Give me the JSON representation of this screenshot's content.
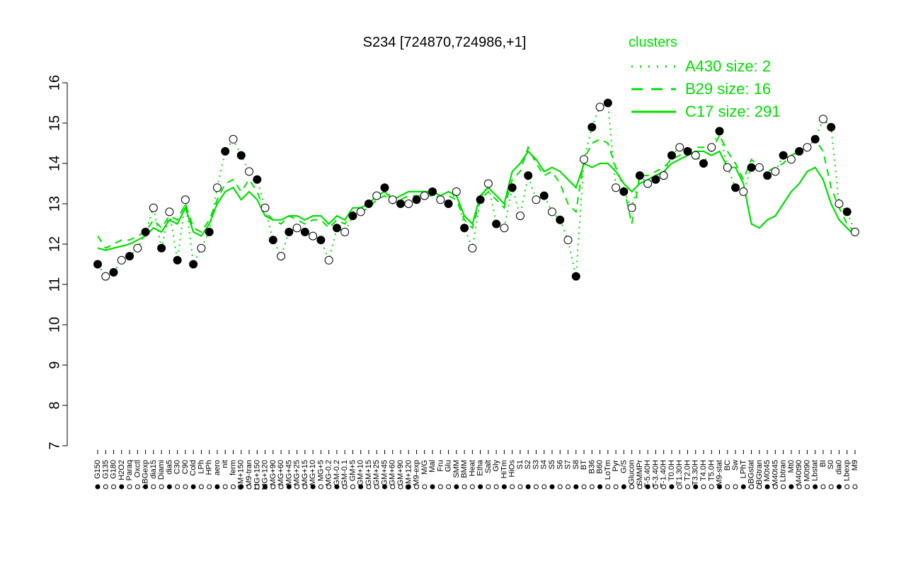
{
  "chart_data": {
    "type": "scatter",
    "title": "S234 [724870,724986,+1]",
    "xlabel": "",
    "ylabel": "",
    "ylim": [
      7,
      16
    ],
    "yticks": [
      7,
      8,
      9,
      10,
      11,
      12,
      13,
      14,
      15,
      16
    ],
    "grid": false,
    "legend_position": "top-right",
    "colors": {
      "axis": "#000000",
      "line": "#00dd00",
      "point_fill_dark": "#000000",
      "point_fill_light": "#ffffff"
    },
    "legend": {
      "title": "clusters",
      "entries": [
        {
          "label": "A430 size: 2",
          "style": "dotted"
        },
        {
          "label": "B29 size: 16",
          "style": "dashed"
        },
        {
          "label": "C17 size: 291",
          "style": "solid"
        }
      ]
    },
    "x_tick_labels": [
      "G150",
      "G135",
      "G180",
      "H2O2",
      "Paraq",
      "Oxctl",
      "LBGexp",
      "dia15",
      "Diami",
      "dia5",
      "C30",
      "C90",
      "Cold",
      "LPh",
      "HPh",
      "aero",
      "nit",
      "ferm",
      "GM+150",
      "M9-tran",
      "MG+150",
      "MG+120",
      "MG+90",
      "MG+60",
      "MG+45",
      "MG+25",
      "MG+15",
      "MG+10",
      "MG+5",
      "MG-0.2",
      "GM-0.2",
      "GM-0.1",
      "GM+5",
      "GM+10",
      "GM+15",
      "GM+25",
      "GM+45",
      "GM+60",
      "GM+90",
      "GM+120",
      "M9-exp",
      "M/G",
      "Mal",
      "Fru",
      "Glu",
      "SMM",
      "BMM",
      "Heat",
      "Etha",
      "Salt",
      "Gly",
      "HiTm",
      "HiOs",
      "S1",
      "S2",
      "S3",
      "S4",
      "S5",
      "S6",
      "S7",
      "S8",
      "BT",
      "B36",
      "B60",
      "LoTm",
      "Pyr",
      "G/S",
      "Glucon",
      "SMMPr",
      "T-5.40H",
      "T-3.40H",
      "T-1.40H",
      "T0.0H",
      "T1.30H",
      "T2.0H",
      "T3.30H",
      "T4.0H",
      "T5.0H",
      "M9-stat",
      "BC",
      "Sw",
      "LPhT",
      "LBGstat",
      "LBGtran",
      "M0t45",
      "M40t45",
      "Lbtran",
      "Mt0",
      "M40t90",
      "M0t90",
      "Lbstat",
      "BI",
      "S0",
      "dia0",
      "Lbexp",
      "M9"
    ],
    "series": [
      {
        "name": "C17 size: 291",
        "style": "solid",
        "values": [
          11.9,
          11.85,
          11.9,
          11.95,
          12.0,
          12.1,
          12.2,
          12.4,
          12.3,
          12.6,
          12.5,
          12.9,
          12.3,
          12.2,
          12.5,
          13.0,
          13.3,
          13.4,
          13.1,
          13.3,
          13.1,
          12.7,
          12.6,
          12.6,
          12.7,
          12.7,
          12.6,
          12.7,
          12.7,
          12.5,
          12.7,
          12.6,
          12.9,
          12.9,
          13.0,
          13.2,
          13.3,
          13.1,
          13.2,
          13.3,
          13.3,
          13.3,
          13.3,
          13.2,
          13.3,
          13.2,
          12.7,
          12.5,
          13.2,
          13.4,
          13.2,
          13.0,
          13.8,
          14.0,
          14.3,
          14.1,
          13.8,
          13.9,
          13.8,
          13.6,
          13.4,
          14.0,
          13.9,
          14.0,
          14.0,
          13.8,
          13.5,
          13.3,
          13.5,
          13.6,
          13.7,
          13.8,
          14.0,
          14.1,
          14.2,
          14.3,
          14.3,
          14.2,
          14.3,
          13.9,
          13.9,
          13.5,
          12.5,
          12.4,
          12.6,
          12.7,
          13.0,
          13.3,
          13.5,
          13.8,
          13.9,
          13.6,
          13.0,
          12.6,
          12.4,
          12.2
        ]
      },
      {
        "name": "B29 size: 16",
        "style": "dashed",
        "values": [
          12.2,
          11.9,
          12.0,
          12.1,
          12.1,
          12.2,
          12.3,
          12.6,
          12.4,
          12.7,
          12.6,
          13.0,
          12.4,
          12.3,
          12.6,
          13.1,
          13.5,
          13.6,
          13.3,
          13.6,
          13.3,
          12.8,
          12.6,
          12.5,
          12.7,
          12.6,
          12.5,
          12.6,
          12.6,
          12.4,
          12.6,
          12.5,
          12.8,
          12.8,
          12.9,
          13.1,
          13.2,
          13.0,
          13.1,
          13.2,
          13.2,
          13.2,
          13.2,
          13.1,
          13.2,
          13.1,
          12.6,
          12.4,
          13.1,
          13.3,
          13.1,
          12.9,
          13.6,
          13.8,
          14.4,
          14.0,
          13.7,
          13.8,
          13.5,
          13.0,
          12.8,
          14.1,
          14.5,
          14.6,
          14.5,
          13.9,
          13.4,
          12.5,
          13.7,
          13.7,
          13.8,
          13.9,
          14.1,
          14.2,
          14.3,
          14.4,
          14.4,
          14.3,
          14.7,
          14.3,
          14.0,
          13.6,
          14.1,
          13.9,
          13.8,
          13.9,
          14.0,
          14.2,
          14.3,
          14.4,
          14.6,
          14.3,
          13.4,
          12.9,
          12.5,
          12.3
        ]
      },
      {
        "name": "A430 size: 2",
        "style": "dotted",
        "values": [
          11.5,
          11.2,
          11.3,
          11.6,
          11.7,
          11.9,
          12.3,
          12.9,
          11.9,
          12.8,
          11.6,
          13.1,
          11.5,
          11.9,
          12.3,
          13.4,
          14.3,
          14.6,
          14.2,
          13.8,
          13.6,
          12.9,
          12.1,
          11.7,
          12.3,
          12.4,
          12.3,
          12.2,
          12.1,
          11.6,
          12.4,
          12.3,
          12.7,
          12.8,
          13.0,
          13.2,
          13.4,
          13.1,
          13.0,
          13.0,
          13.1,
          13.2,
          13.3,
          13.1,
          13.0,
          13.3,
          12.4,
          11.9,
          13.1,
          13.5,
          12.5,
          12.4,
          13.4,
          12.7,
          13.7,
          13.1,
          13.2,
          12.8,
          12.6,
          12.1,
          11.2,
          14.1,
          14.9,
          15.4,
          15.5,
          13.4,
          13.3,
          12.9,
          13.7,
          13.5,
          13.6,
          13.7,
          14.2,
          14.4,
          14.3,
          14.2,
          14.0,
          14.4,
          14.8,
          13.9,
          13.4,
          13.3,
          13.9,
          13.9,
          13.7,
          13.8,
          14.2,
          14.1,
          14.3,
          14.4,
          14.6,
          15.1,
          14.9,
          13.0,
          12.8,
          12.3
        ]
      }
    ]
  }
}
